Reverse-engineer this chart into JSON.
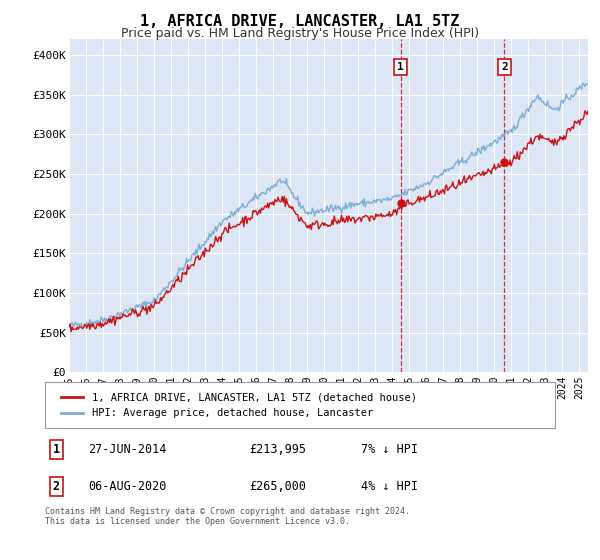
{
  "title": "1, AFRICA DRIVE, LANCASTER, LA1 5TZ",
  "subtitle": "Price paid vs. HM Land Registry's House Price Index (HPI)",
  "title_fontsize": 11,
  "subtitle_fontsize": 9,
  "ylim": [
    0,
    420000
  ],
  "yticks": [
    0,
    50000,
    100000,
    150000,
    200000,
    250000,
    300000,
    350000,
    400000
  ],
  "background_color": "#ffffff",
  "plot_bg_color": "#dce6f5",
  "grid_color": "#ffffff",
  "hpi_line_color": "#7dadd4",
  "price_line_color": "#cc1111",
  "sale1_date_x": 2014.49,
  "sale1_price": 213995,
  "sale1_label": "1",
  "sale2_date_x": 2020.59,
  "sale2_price": 265000,
  "sale2_label": "2",
  "legend_entry1": "1, AFRICA DRIVE, LANCASTER, LA1 5TZ (detached house)",
  "legend_entry2": "HPI: Average price, detached house, Lancaster",
  "table_row1_num": "1",
  "table_row1_date": "27-JUN-2014",
  "table_row1_price": "£213,995",
  "table_row1_hpi": "7% ↓ HPI",
  "table_row2_num": "2",
  "table_row2_date": "06-AUG-2020",
  "table_row2_price": "£265,000",
  "table_row2_hpi": "4% ↓ HPI",
  "footnote": "Contains HM Land Registry data © Crown copyright and database right 2024.\nThis data is licensed under the Open Government Licence v3.0.",
  "xmin": 1995.0,
  "xmax": 2025.5
}
